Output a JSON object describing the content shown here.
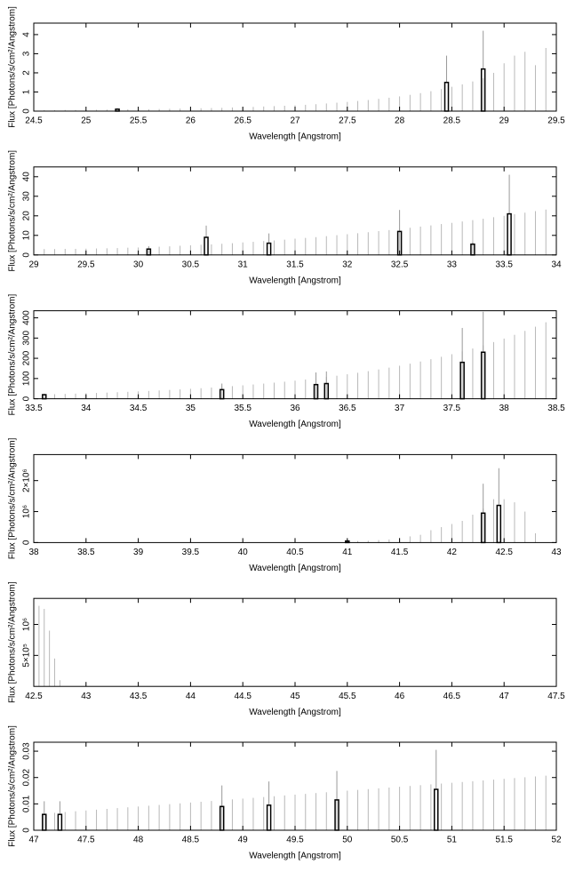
{
  "chart_data": [
    {
      "type": "bar",
      "xlabel": "Wavelength [Angstrom]",
      "ylabel": "Flux [Photons/s/cm²/Angstrom]",
      "xlim": [
        24.5,
        29.5
      ],
      "xticks": [
        24.5,
        25,
        25.5,
        26,
        26.5,
        27,
        27.5,
        28,
        28.5,
        29,
        29.5
      ],
      "ylim": [
        0,
        4.6
      ],
      "yticks": [
        0,
        1,
        2,
        3,
        4
      ],
      "bars": {
        "x": [
          25.3,
          28.45,
          28.8
        ],
        "values": [
          0.1,
          1.5,
          2.2
        ],
        "errors": [
          0.05,
          1.4,
          2.0
        ]
      },
      "upper_limits": {
        "x": [
          24.6,
          24.7,
          24.8,
          24.9,
          25.0,
          25.1,
          25.2,
          25.3,
          25.4,
          25.5,
          25.6,
          25.7,
          25.8,
          25.9,
          26.0,
          26.1,
          26.2,
          26.3,
          26.4,
          26.5,
          26.6,
          26.7,
          26.8,
          26.9,
          27.0,
          27.1,
          27.2,
          27.3,
          27.4,
          27.5,
          27.6,
          27.7,
          27.8,
          27.9,
          28.0,
          28.1,
          28.2,
          28.3,
          28.4,
          28.5,
          28.6,
          28.7,
          28.8,
          28.9,
          29.0,
          29.1,
          29.2,
          29.3,
          29.4
        ],
        "values": [
          0.05,
          0.05,
          0.06,
          0.06,
          0.07,
          0.07,
          0.08,
          0.08,
          0.09,
          0.1,
          0.1,
          0.11,
          0.12,
          0.13,
          0.14,
          0.15,
          0.16,
          0.17,
          0.19,
          0.2,
          0.22,
          0.24,
          0.26,
          0.28,
          0.3,
          0.33,
          0.36,
          0.4,
          0.44,
          0.48,
          0.53,
          0.58,
          0.64,
          0.7,
          0.77,
          0.85,
          0.94,
          1.04,
          1.15,
          1.27,
          1.4,
          1.55,
          1.72,
          2.0,
          2.5,
          2.9,
          3.1,
          2.4,
          3.3
        ]
      }
    },
    {
      "type": "bar",
      "xlabel": "Wavelength [Angstrom]",
      "ylabel": "Flux [Photons/s/cm²/Angstrom]",
      "xlim": [
        29,
        34
      ],
      "xticks": [
        29,
        29.5,
        30,
        30.5,
        31,
        31.5,
        32,
        32.5,
        33,
        33.5,
        34
      ],
      "ylim": [
        0,
        45
      ],
      "yticks": [
        0,
        10,
        20,
        30,
        40
      ],
      "bars": {
        "x": [
          30.1,
          30.65,
          31.25,
          32.5,
          33.2,
          33.55
        ],
        "values": [
          3,
          9,
          6,
          12,
          5.5,
          21
        ],
        "errors": [
          1.5,
          6,
          5,
          11,
          1,
          20
        ]
      },
      "upper_limits": {
        "x": [
          29.1,
          29.2,
          29.3,
          29.4,
          29.5,
          29.6,
          29.7,
          29.8,
          29.9,
          30.0,
          30.1,
          30.2,
          30.3,
          30.4,
          30.5,
          30.6,
          30.7,
          30.8,
          30.9,
          31.0,
          31.1,
          31.2,
          31.3,
          31.4,
          31.5,
          31.6,
          31.7,
          31.8,
          31.9,
          32.0,
          32.1,
          32.2,
          32.3,
          32.4,
          32.5,
          32.6,
          32.7,
          32.8,
          32.9,
          33.0,
          33.1,
          33.2,
          33.3,
          33.4,
          33.5,
          33.6,
          33.7,
          33.8,
          33.9
        ],
        "values": [
          3.0,
          3.0,
          3.1,
          3.1,
          3.2,
          3.3,
          3.4,
          3.5,
          3.7,
          3.8,
          4.0,
          4.2,
          4.4,
          4.7,
          4.9,
          5.2,
          5.4,
          5.7,
          6.0,
          6.4,
          6.7,
          7.1,
          7.4,
          7.8,
          8.3,
          8.7,
          9.1,
          9.6,
          10.1,
          10.6,
          11.1,
          11.6,
          12.2,
          12.7,
          13.3,
          13.9,
          14.5,
          15.1,
          15.8,
          16.4,
          17.1,
          17.8,
          18.5,
          19.3,
          20.0,
          20.8,
          21.6,
          22.4,
          23.2
        ]
      }
    },
    {
      "type": "bar",
      "xlabel": "Wavelength [Angstrom]",
      "ylabel": "Flux [Photons/s/cm²/Angstrom]",
      "xlim": [
        33.5,
        38.5
      ],
      "xticks": [
        33.5,
        34,
        34.5,
        35,
        35.5,
        36,
        36.5,
        37,
        37.5,
        38,
        38.5
      ],
      "ylim": [
        0,
        435
      ],
      "yticks": [
        0,
        100,
        200,
        300,
        400
      ],
      "bars": {
        "x": [
          33.6,
          35.3,
          36.2,
          36.3,
          37.6,
          37.8
        ],
        "values": [
          20,
          45,
          70,
          75,
          180,
          230
        ],
        "errors": [
          5,
          30,
          60,
          60,
          170,
          200
        ]
      },
      "upper_limits": {
        "x": [
          33.6,
          33.7,
          33.8,
          33.9,
          34.0,
          34.1,
          34.2,
          34.3,
          34.4,
          34.5,
          34.6,
          34.7,
          34.8,
          34.9,
          35.0,
          35.1,
          35.2,
          35.3,
          35.4,
          35.5,
          35.6,
          35.7,
          35.8,
          35.9,
          36.0,
          36.1,
          36.2,
          36.3,
          36.4,
          36.5,
          36.6,
          36.7,
          36.8,
          36.9,
          37.0,
          37.1,
          37.2,
          37.3,
          37.4,
          37.5,
          37.6,
          37.7,
          37.8,
          37.9,
          38.0,
          38.1,
          38.2,
          38.3,
          38.4
        ],
        "values": [
          21.2,
          22.5,
          23.9,
          25.4,
          27.0,
          28.7,
          30.4,
          32.3,
          34.3,
          36.4,
          38.7,
          41.1,
          43.6,
          46.3,
          49.2,
          52.2,
          55.5,
          58.9,
          62.5,
          66.4,
          70.5,
          74.9,
          79.5,
          84.4,
          89.6,
          95.2,
          101.0,
          107.3,
          113.9,
          121.0,
          128.4,
          136.4,
          144.8,
          153.8,
          163.3,
          173.4,
          184.1,
          195.5,
          207.5,
          220.4,
          234.0,
          248.5,
          263.8,
          280.1,
          297.5,
          315.8,
          335.4,
          356.1,
          378.1
        ]
      }
    },
    {
      "type": "bar",
      "xlabel": "Wavelength [Angstrom]",
      "ylabel": "Flux [Photons/s/cm²/Angstrom]",
      "xlim": [
        38,
        43
      ],
      "xticks": [
        38,
        38.5,
        39,
        39.5,
        40,
        40.5,
        41,
        41.5,
        42,
        42.5,
        43
      ],
      "ylim": [
        0,
        2840000
      ],
      "yticks": [
        0,
        {
          "value": 1000000,
          "label": "10⁶"
        },
        {
          "value": 2000000,
          "label": "2×10⁶"
        }
      ],
      "bars": {
        "x": [
          41.0,
          42.3,
          42.45
        ],
        "values": [
          50000,
          950000,
          1200000
        ],
        "errors": [
          30000,
          950000,
          1200000
        ]
      },
      "upper_limits": {
        "x": [
          41.0,
          41.1,
          41.2,
          41.3,
          41.4,
          41.5,
          41.6,
          41.7,
          41.8,
          41.9,
          42.0,
          42.1,
          42.2,
          42.3,
          42.4,
          42.5,
          42.6,
          42.7,
          42.8
        ],
        "values": [
          50000,
          50000,
          60000,
          80000,
          100000,
          150000,
          200000,
          250000,
          400000,
          500000,
          600000,
          700000,
          900000,
          1100000,
          1400000,
          1400000,
          1300000,
          1000000,
          300000
        ]
      }
    },
    {
      "type": "bar",
      "xlabel": "Wavelength [Angstrom]",
      "ylabel": "Flux [Photons/s/cm²/Angstrom]",
      "xlim": [
        42.5,
        47.5
      ],
      "xticks": [
        42.5,
        43,
        43.5,
        44,
        44.5,
        45,
        45.5,
        46,
        46.5,
        47,
        47.5
      ],
      "ylim": [
        0,
        1420000
      ],
      "yticks": [
        {
          "value": 500000,
          "label": "5×10⁵"
        },
        {
          "value": 1000000,
          "label": "10⁶"
        }
      ],
      "bars": {
        "x": [],
        "values": [],
        "errors": []
      },
      "upper_limits": {
        "x": [
          42.55,
          42.6,
          42.65,
          42.7,
          42.75
        ],
        "values": [
          1300000,
          1250000,
          900000,
          450000,
          100000
        ]
      }
    },
    {
      "type": "bar",
      "xlabel": "Wavelength [Angstrom]",
      "ylabel": "Flux [Photons/s/cm²/Angstrom]",
      "xlim": [
        47,
        52
      ],
      "xticks": [
        47,
        47.5,
        48,
        48.5,
        49,
        49.5,
        50,
        50.5,
        51,
        51.5,
        52
      ],
      "ylim": [
        0,
        0.0334
      ],
      "yticks": [
        0,
        0.01,
        0.02,
        0.03
      ],
      "bars": {
        "x": [
          47.1,
          47.25,
          48.8,
          49.25,
          49.9,
          50.85
        ],
        "values": [
          0.006,
          0.006,
          0.009,
          0.0095,
          0.0115,
          0.0155
        ],
        "errors": [
          0.005,
          0.005,
          0.008,
          0.009,
          0.011,
          0.015
        ]
      },
      "upper_limits": {
        "x": [
          47.1,
          47.2,
          47.3,
          47.4,
          47.5,
          47.6,
          47.7,
          47.8,
          47.9,
          48.0,
          48.1,
          48.2,
          48.3,
          48.4,
          48.5,
          48.6,
          48.7,
          48.8,
          48.9,
          49.0,
          49.1,
          49.2,
          49.3,
          49.4,
          49.5,
          49.6,
          49.7,
          49.8,
          49.9,
          50.0,
          50.1,
          50.2,
          50.3,
          50.4,
          50.5,
          50.6,
          50.7,
          50.8,
          50.9,
          51.0,
          51.1,
          51.2,
          51.3,
          51.4,
          51.5,
          51.6,
          51.7,
          51.8,
          51.9
        ],
        "values": [
          0.0063,
          0.0066,
          0.0069,
          0.0072,
          0.0075,
          0.0078,
          0.0081,
          0.0084,
          0.0087,
          0.009,
          0.0093,
          0.0096,
          0.0099,
          0.0102,
          0.0105,
          0.0108,
          0.0111,
          0.0114,
          0.0117,
          0.012,
          0.0123,
          0.0126,
          0.0129,
          0.0132,
          0.0135,
          0.0138,
          0.0141,
          0.0144,
          0.0147,
          0.015,
          0.0153,
          0.0156,
          0.0159,
          0.0162,
          0.0165,
          0.0168,
          0.0171,
          0.0174,
          0.0177,
          0.018,
          0.0183,
          0.0186,
          0.0189,
          0.0192,
          0.0195,
          0.0198,
          0.0201,
          0.0204,
          0.0207
        ]
      }
    }
  ]
}
